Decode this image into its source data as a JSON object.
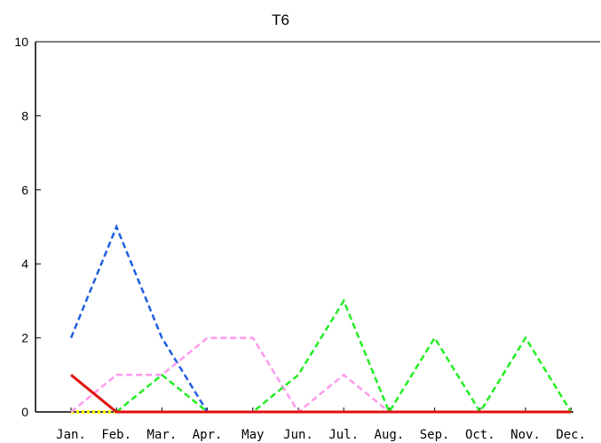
{
  "chart_data": {
    "type": "line",
    "title": "T6",
    "xlabel": "",
    "ylabel": "",
    "categories": [
      "Jan.",
      "Feb.",
      "Mar.",
      "Apr.",
      "May",
      "Jun.",
      "Jul.",
      "Aug.",
      "Sep.",
      "Oct.",
      "Nov.",
      "Dec."
    ],
    "ylim": [
      0,
      10
    ],
    "yticks": [
      "0",
      "2",
      "4",
      "6",
      "8",
      "10"
    ],
    "grid": false,
    "series": [
      {
        "color": "#ffff00",
        "style": "dotted",
        "values": [
          0,
          0,
          null,
          null,
          null,
          null,
          null,
          null,
          null,
          null,
          null,
          null
        ]
      },
      {
        "color": "#1f5fe0",
        "style": "dashed",
        "values": [
          2,
          5,
          2,
          0,
          0,
          0,
          0,
          0,
          0,
          0,
          0,
          0
        ]
      },
      {
        "color": "#ff99ee",
        "style": "dashed",
        "values": [
          0,
          1,
          1,
          2,
          2,
          0,
          1,
          0,
          0,
          0,
          0,
          0
        ]
      },
      {
        "color": "#22ee22",
        "style": "dashed",
        "values": [
          null,
          0,
          1,
          0,
          0,
          1,
          3,
          0,
          2,
          0,
          2,
          0
        ]
      },
      {
        "color": "#e01010",
        "style": "solid",
        "values": [
          1,
          0,
          0,
          0,
          0,
          0,
          0,
          0,
          0,
          0,
          0,
          0
        ]
      }
    ]
  }
}
